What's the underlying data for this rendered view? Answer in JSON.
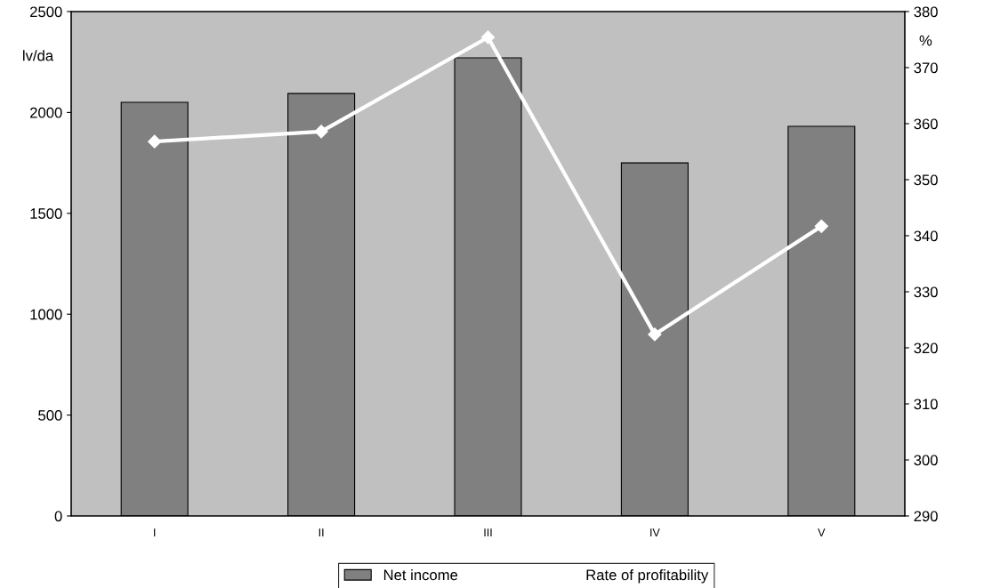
{
  "chart_data": {
    "type": "bar",
    "categories": [
      "I",
      "II",
      "III",
      "IV",
      "V"
    ],
    "series": [
      {
        "name": "Net income",
        "color": "#808080",
        "values": [
          2050,
          2094,
          2271,
          1750,
          1931
        ]
      },
      {
        "name": "Rate of profitability",
        "type": "line",
        "axis": "y2",
        "color": "#ffffff",
        "marker": "diamond",
        "values": [
          356.8,
          358.6,
          375.4,
          322.4,
          341.7
        ]
      }
    ],
    "ylabel": "lv/da",
    "y2label": "%",
    "ylim": [
      0,
      2500
    ],
    "yticks": [
      0,
      500,
      1000,
      1500,
      2000,
      2500
    ],
    "y2lim": [
      290,
      380
    ],
    "y2ticks": [
      290,
      300,
      310,
      320,
      330,
      340,
      350,
      360,
      370,
      380
    ],
    "grid": false,
    "legend": "bottom"
  }
}
